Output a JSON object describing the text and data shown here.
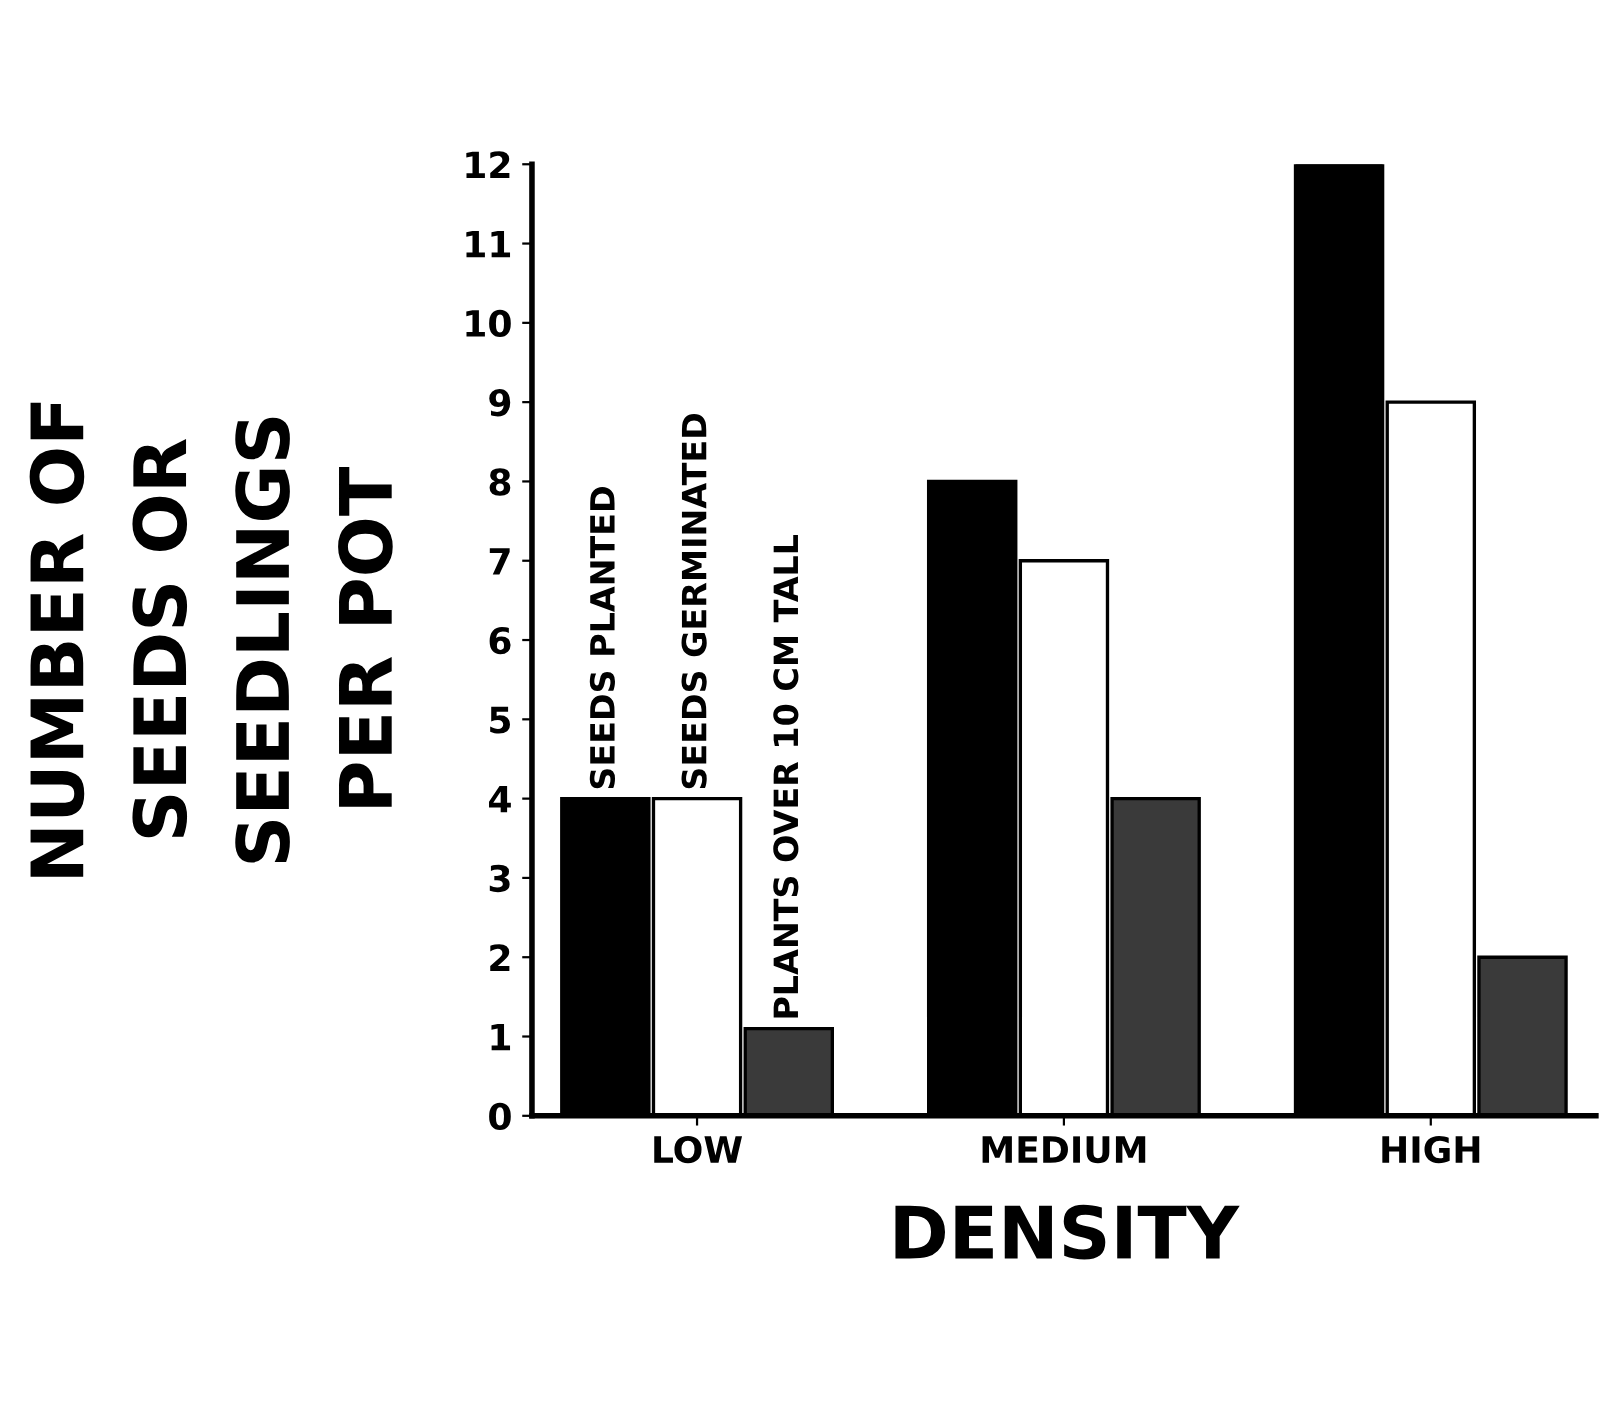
{
  "chart_data": {
    "type": "bar",
    "xlabel": "DENSITY",
    "ylabel": "NUMBER OF\nSEEDS OR\nSEEDLINGS\nPER POT",
    "categories": [
      "LOW",
      "MEDIUM",
      "HIGH"
    ],
    "series": [
      {
        "name": "SEEDS PLANTED",
        "color": "#000000",
        "values": [
          4,
          8,
          12
        ]
      },
      {
        "name": "SEEDS GERMINATED",
        "color": "#ffffff",
        "values": [
          4,
          7,
          9
        ]
      },
      {
        "name": "PLANTS OVER 10 CM TALL",
        "color": "#3a3a3a",
        "values": [
          1.1,
          4,
          2
        ]
      }
    ],
    "ylim": [
      0,
      12
    ],
    "yticks": [
      0,
      1,
      2,
      3,
      4,
      5,
      6,
      7,
      8,
      9,
      10,
      11,
      12
    ],
    "grid": false,
    "legend": false
  }
}
